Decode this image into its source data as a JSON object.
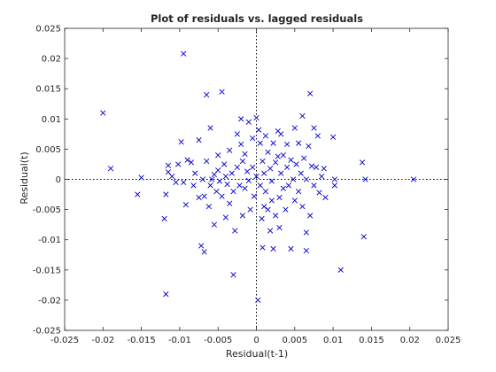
{
  "colors": {
    "marker": "#0000c8",
    "axis": "#262626",
    "refline": "#000000",
    "background": "#ffffff"
  },
  "chart_data": {
    "type": "scatter",
    "title": "Plot of residuals vs. lagged residuals",
    "xlabel": "Residual(t-1)",
    "ylabel": "Residual(t)",
    "xlim": [
      -0.025,
      0.025
    ],
    "ylim": [
      -0.025,
      0.025
    ],
    "xticks": [
      "-0.025",
      "-0.02",
      "-0.015",
      "-0.01",
      "-0.005",
      "0",
      "0.005",
      "0.01",
      "0.015",
      "0.02",
      "0.025"
    ],
    "yticks": [
      "-0.025",
      "-0.02",
      "-0.015",
      "-0.01",
      "-0.005",
      "0",
      "0.005",
      "0.01",
      "0.015",
      "0.02",
      "0.025"
    ],
    "marker": "x",
    "grid": false,
    "reference_lines": {
      "x": 0,
      "y": 0,
      "style": "dotted"
    },
    "points": [
      [
        -0.02,
        0.011
      ],
      [
        -0.019,
        0.0018
      ],
      [
        -0.0155,
        -0.0025
      ],
      [
        -0.015,
        0.0003
      ],
      [
        -0.012,
        -0.0065
      ],
      [
        -0.0118,
        -0.019
      ],
      [
        -0.0118,
        -0.0025
      ],
      [
        -0.0115,
        0.0012
      ],
      [
        -0.0115,
        0.0023
      ],
      [
        -0.011,
        0.0005
      ],
      [
        -0.0105,
        -0.0005
      ],
      [
        -0.0102,
        0.0025
      ],
      [
        -0.0095,
        0.0208
      ],
      [
        -0.0098,
        0.0062
      ],
      [
        -0.0095,
        -0.0005
      ],
      [
        -0.009,
        0.0032
      ],
      [
        -0.0092,
        -0.0042
      ],
      [
        -0.0085,
        0.0028
      ],
      [
        -0.0082,
        -0.001
      ],
      [
        -0.008,
        0.001
      ],
      [
        -0.0075,
        0.0065
      ],
      [
        -0.0075,
        -0.003
      ],
      [
        -0.0072,
        -0.011
      ],
      [
        -0.007,
        0.0
      ],
      [
        -0.0068,
        -0.0028
      ],
      [
        -0.0068,
        -0.012
      ],
      [
        -0.0065,
        0.014
      ],
      [
        -0.0065,
        0.003
      ],
      [
        -0.0062,
        -0.0045
      ],
      [
        -0.006,
        0.0085
      ],
      [
        -0.006,
        -0.001
      ],
      [
        -0.0058,
        0.0
      ],
      [
        -0.0055,
        0.0008
      ],
      [
        -0.0055,
        -0.0075
      ],
      [
        -0.0052,
        -0.002
      ],
      [
        -0.005,
        0.004
      ],
      [
        -0.005,
        0.0015
      ],
      [
        -0.0048,
        -0.0003
      ],
      [
        -0.0045,
        0.0145
      ],
      [
        -0.0045,
        -0.0028
      ],
      [
        -0.0042,
        0.0025
      ],
      [
        -0.004,
        0.0005
      ],
      [
        -0.004,
        -0.0063
      ],
      [
        -0.0038,
        -0.0008
      ],
      [
        -0.0035,
        0.0048
      ],
      [
        -0.0035,
        -0.004
      ],
      [
        -0.0032,
        0.001
      ],
      [
        -0.003,
        -0.0158
      ],
      [
        -0.003,
        -0.002
      ],
      [
        -0.0028,
        -0.0085
      ],
      [
        -0.0025,
        0.0075
      ],
      [
        -0.0025,
        0.002
      ],
      [
        -0.0022,
        -0.001
      ],
      [
        -0.002,
        0.01
      ],
      [
        -0.002,
        0.0058
      ],
      [
        -0.0018,
        0.003
      ],
      [
        -0.0018,
        -0.006
      ],
      [
        -0.0015,
        0.0042
      ],
      [
        -0.0015,
        -0.0015
      ],
      [
        -0.0012,
        0.0013
      ],
      [
        -0.001,
        -0.0002
      ],
      [
        -0.001,
        0.0095
      ],
      [
        -0.0008,
        -0.005
      ],
      [
        -0.0005,
        0.0068
      ],
      [
        -0.0005,
        0.002
      ],
      [
        -0.0003,
        -0.0028
      ],
      [
        0.0,
        0.0102
      ],
      [
        0.0,
        0.0005
      ],
      [
        0.0002,
        -0.02
      ],
      [
        0.0003,
        0.0082
      ],
      [
        0.0005,
        -0.001
      ],
      [
        0.0005,
        0.006
      ],
      [
        0.0007,
        -0.0065
      ],
      [
        0.0008,
        0.003
      ],
      [
        0.0008,
        -0.0113
      ],
      [
        0.001,
        0.001
      ],
      [
        0.001,
        -0.0045
      ],
      [
        0.0012,
        0.0072
      ],
      [
        0.0012,
        -0.002
      ],
      [
        0.0015,
        0.0045
      ],
      [
        0.0015,
        -0.005
      ],
      [
        0.0018,
        0.0018
      ],
      [
        0.0018,
        -0.0085
      ],
      [
        0.002,
        -0.0003
      ],
      [
        0.002,
        -0.0035
      ],
      [
        0.0022,
        0.006
      ],
      [
        0.0022,
        -0.0115
      ],
      [
        0.0025,
        0.0028
      ],
      [
        0.0025,
        -0.006
      ],
      [
        0.0028,
        0.008
      ],
      [
        0.0028,
        0.0038
      ],
      [
        0.003,
        -0.003
      ],
      [
        0.003,
        -0.008
      ],
      [
        0.0032,
        0.001
      ],
      [
        0.0032,
        0.0075
      ],
      [
        0.0035,
        -0.0015
      ],
      [
        0.0035,
        0.004
      ],
      [
        0.0038,
        -0.005
      ],
      [
        0.004,
        0.002
      ],
      [
        0.004,
        0.0058
      ],
      [
        0.0042,
        -0.001
      ],
      [
        0.0045,
        -0.0115
      ],
      [
        0.0045,
        0.0032
      ],
      [
        0.0048,
        0.0
      ],
      [
        0.005,
        0.0085
      ],
      [
        0.005,
        -0.0035
      ],
      [
        0.0052,
        0.0025
      ],
      [
        0.0055,
        -0.002
      ],
      [
        0.0055,
        0.006
      ],
      [
        0.0058,
        0.001
      ],
      [
        0.006,
        -0.0045
      ],
      [
        0.006,
        0.0105
      ],
      [
        0.0062,
        0.0035
      ],
      [
        0.0065,
        -0.0088
      ],
      [
        0.0065,
        -0.0118
      ],
      [
        0.0065,
        0.0
      ],
      [
        0.0068,
        0.0055
      ],
      [
        0.007,
        0.0142
      ],
      [
        0.007,
        -0.006
      ],
      [
        0.0072,
        0.0022
      ],
      [
        0.0075,
        0.0085
      ],
      [
        0.0075,
        -0.001
      ],
      [
        0.0078,
        0.002
      ],
      [
        0.008,
        0.0072
      ],
      [
        0.0082,
        -0.0022
      ],
      [
        0.0085,
        0.0005
      ],
      [
        0.0088,
        0.0018
      ],
      [
        0.009,
        -0.003
      ],
      [
        0.01,
        0.007
      ],
      [
        0.0102,
        -0.001
      ],
      [
        0.0102,
        0.0
      ],
      [
        0.011,
        -0.015
      ],
      [
        0.0138,
        0.0028
      ],
      [
        0.014,
        -0.0095
      ],
      [
        0.0142,
        0.0
      ],
      [
        0.0205,
        0.0
      ]
    ]
  }
}
